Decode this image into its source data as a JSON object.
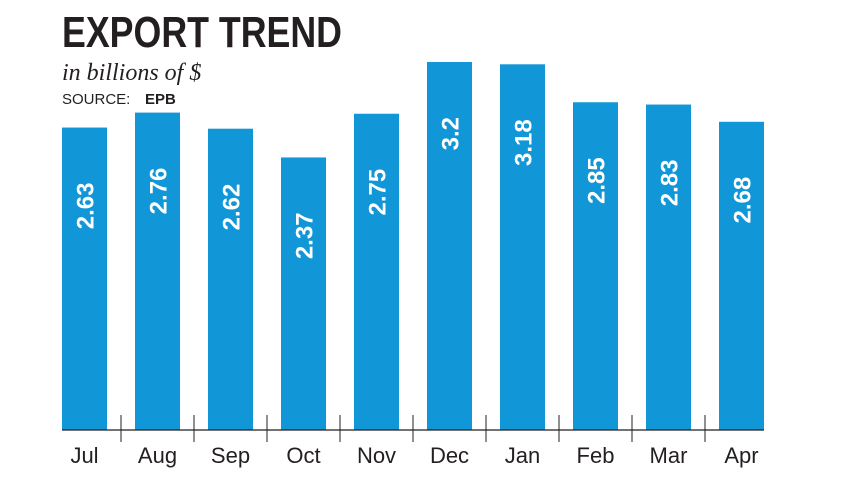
{
  "chart_data": {
    "type": "bar",
    "title": "EXPORT TREND",
    "subtitle": "in billions of $",
    "source_label": "SOURCE:",
    "source": "EPB",
    "categories": [
      "Jul",
      "Aug",
      "Sep",
      "Oct",
      "Nov",
      "Dec",
      "Jan",
      "Feb",
      "Mar",
      "Apr"
    ],
    "values": [
      2.63,
      2.76,
      2.62,
      2.37,
      2.75,
      3.2,
      3.18,
      2.85,
      2.83,
      2.68
    ],
    "color": "#1196d7",
    "ylim": [
      0,
      3.2
    ]
  }
}
